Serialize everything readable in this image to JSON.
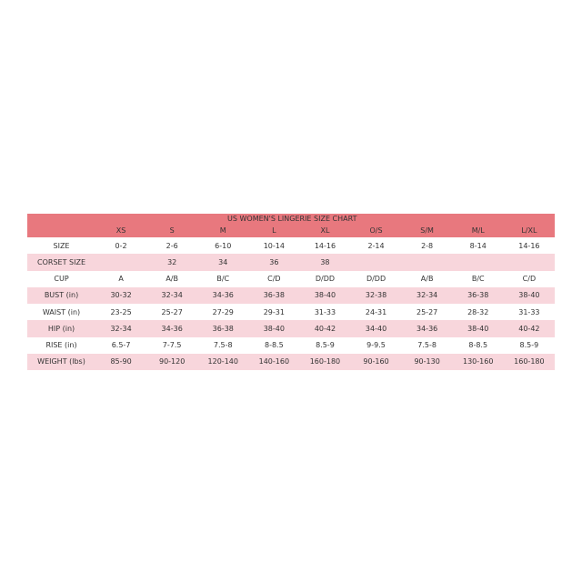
{
  "title": "US WOMEN'S LINGERIE SIZE CHART",
  "colors": {
    "header": "#e8787e",
    "band": "#f8d6dc"
  },
  "columns": [
    "XS",
    "S",
    "M",
    "L",
    "XL",
    "O/S",
    "S/M",
    "M/L",
    "L/XL"
  ],
  "rows": [
    {
      "label": "SIZE",
      "values": [
        "0-2",
        "2-6",
        "6-10",
        "10-14",
        "14-16",
        "2-14",
        "2-8",
        "8-14",
        "14-16"
      ]
    },
    {
      "label": "CORSET SIZE",
      "values": [
        "",
        "32",
        "34",
        "36",
        "38",
        "",
        "",
        "",
        ""
      ]
    },
    {
      "label": "CUP",
      "values": [
        "A",
        "A/B",
        "B/C",
        "C/D",
        "D/DD",
        "D/DD",
        "A/B",
        "B/C",
        "C/D"
      ]
    },
    {
      "label": "BUST (in)",
      "values": [
        "30-32",
        "32-34",
        "34-36",
        "36-38",
        "38-40",
        "32-38",
        "32-34",
        "36-38",
        "38-40"
      ]
    },
    {
      "label": "WAIST (in)",
      "values": [
        "23-25",
        "25-27",
        "27-29",
        "29-31",
        "31-33",
        "24-31",
        "25-27",
        "28-32",
        "31-33"
      ]
    },
    {
      "label": "HIP (in)",
      "values": [
        "32-34",
        "34-36",
        "36-38",
        "38-40",
        "40-42",
        "34-40",
        "34-36",
        "38-40",
        "40-42"
      ]
    },
    {
      "label": "RISE (in)",
      "values": [
        "6.5-7",
        "7-7.5",
        "7.5-8",
        "8-8.5",
        "8.5-9",
        "9-9.5",
        "7.5-8",
        "8-8.5",
        "8.5-9"
      ]
    },
    {
      "label": "WEIGHT (lbs)",
      "values": [
        "85-90",
        "90-120",
        "120-140",
        "140-160",
        "160-180",
        "90-160",
        "90-130",
        "130-160",
        "160-180"
      ]
    }
  ]
}
